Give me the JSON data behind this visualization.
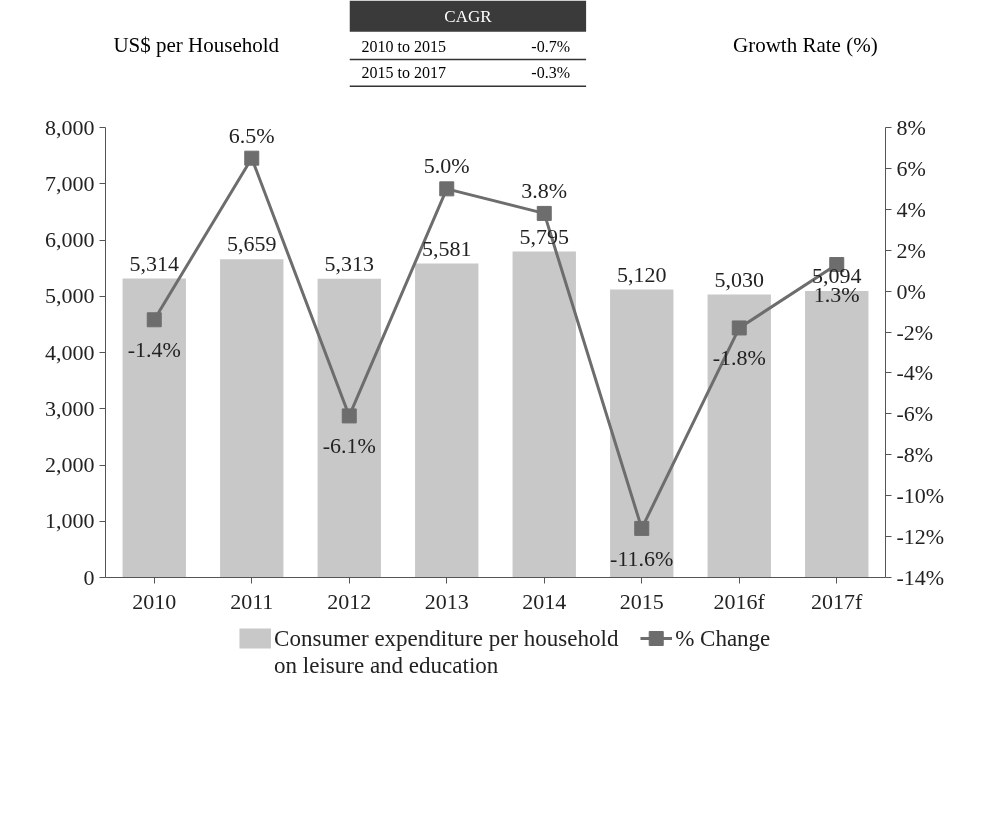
{
  "chart_data": {
    "type": "bar",
    "ylabel": "US$ per Household",
    "y2label": "Growth Rate (%)",
    "annotations": [
      "CAGR",
      "2010 to 2015",
      "-0.7%",
      "2015 to 2017",
      "-0.3%"
    ],
    "categories": [
      "2010",
      "2011",
      "2012",
      "2013",
      "2014",
      "2015",
      "2016f",
      "2017f"
    ],
    "series": [
      {
        "name": "Consumer expenditure per household on leisure and education",
        "color": "#c8c8c8",
        "values": [
          5314,
          5659,
          5313,
          5581,
          5795,
          5120,
          5030,
          5094
        ],
        "value_labels": [
          "5,314",
          "5,659",
          "5,313",
          "5,581",
          "5,795",
          "5,120",
          "5,030",
          "5,094"
        ]
      },
      {
        "name": "% Change",
        "type": "line",
        "axis": "y2",
        "color": "#6d6d6d",
        "marker": "square",
        "values": [
          -1.4,
          6.5,
          -6.1,
          5.0,
          3.8,
          -11.6,
          -1.8,
          1.3
        ],
        "value_labels": [
          "-1.4%",
          "6.5%",
          "-6.1%",
          "5.0%",
          "3.8%",
          "-11.6%",
          "-1.8%",
          "1.3%"
        ]
      }
    ],
    "ylim": [
      0,
      8000
    ],
    "yticks": [
      0,
      {
        "value": 1000,
        "label": "1,000"
      },
      {
        "value": 2000,
        "label": "2,000"
      },
      {
        "value": 3000,
        "label": "3,000"
      },
      {
        "value": 4000,
        "label": "4,000"
      },
      {
        "value": 5000,
        "label": "5,000"
      },
      {
        "value": 6000,
        "label": "6,000"
      },
      {
        "value": 7000,
        "label": "7,000"
      },
      {
        "value": 8000,
        "label": "8,000"
      }
    ],
    "y2lim": [
      -14,
      8
    ],
    "y2ticks": [
      {
        "value": -14,
        "label": "-14%"
      },
      {
        "value": -12,
        "label": "-12%"
      },
      {
        "value": -10,
        "label": "-10%"
      },
      {
        "value": -8,
        "label": "-8%"
      },
      {
        "value": -6,
        "label": "-6%"
      },
      {
        "value": -4,
        "label": "-4%"
      },
      {
        "value": -2,
        "label": "-2%"
      },
      {
        "value": 0,
        "label": "0%"
      },
      {
        "value": 2,
        "label": "2%"
      },
      {
        "value": 4,
        "label": "4%"
      },
      {
        "value": 6,
        "label": "6%"
      },
      {
        "value": 8,
        "label": "8%"
      }
    ],
    "legend": "bottom",
    "grid": false
  }
}
